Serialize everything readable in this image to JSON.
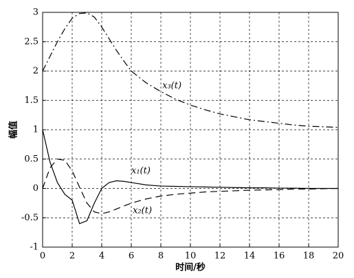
{
  "chart_data": {
    "type": "line",
    "xlabel": "时间/秒",
    "ylabel": "幅值",
    "x": [
      0,
      0.5,
      1,
      1.5,
      2,
      2.5,
      3,
      3.5,
      4,
      4.5,
      5,
      5.5,
      6,
      7,
      8,
      9,
      10,
      11,
      12,
      13,
      14,
      15,
      16,
      17,
      18,
      19,
      20
    ],
    "series": [
      {
        "name": "x₁(t)",
        "color": "#000000",
        "dash": "solid",
        "values": [
          1,
          0.45,
          0.1,
          -0.1,
          -0.2,
          -0.6,
          -0.55,
          -0.25,
          0.0,
          0.1,
          0.13,
          0.12,
          0.1,
          0.06,
          0.04,
          0.035,
          0.03,
          0.025,
          0.02,
          0.015,
          0.01,
          0.01,
          0.005,
          0.005,
          0,
          0,
          0
        ]
      },
      {
        "name": "x₂(t)",
        "color": "#000000",
        "dash": "dashed",
        "values": [
          0,
          0.35,
          0.5,
          0.48,
          0.3,
          0.02,
          -0.25,
          -0.4,
          -0.43,
          -0.4,
          -0.35,
          -0.3,
          -0.25,
          -0.18,
          -0.13,
          -0.1,
          -0.08,
          -0.06,
          -0.05,
          -0.04,
          -0.03,
          -0.025,
          -0.02,
          -0.01,
          -0.01,
          -0.005,
          0
        ]
      },
      {
        "name": "x₃(t)",
        "color": "#000000",
        "dash": "dashdot",
        "values": [
          2,
          2.25,
          2.5,
          2.72,
          2.9,
          2.98,
          2.99,
          2.92,
          2.75,
          2.55,
          2.35,
          2.17,
          2.0,
          1.8,
          1.65,
          1.52,
          1.42,
          1.34,
          1.27,
          1.22,
          1.17,
          1.14,
          1.11,
          1.08,
          1.06,
          1.05,
          1.04
        ]
      }
    ],
    "xlim": [
      0,
      20
    ],
    "xticks": [
      0,
      2,
      4,
      6,
      8,
      10,
      12,
      14,
      16,
      18,
      20
    ],
    "ylim": [
      -1,
      3
    ],
    "yticks": [
      -1,
      -0.5,
      0,
      0.5,
      1,
      1.5,
      2,
      2.5,
      3
    ],
    "grid": true
  }
}
